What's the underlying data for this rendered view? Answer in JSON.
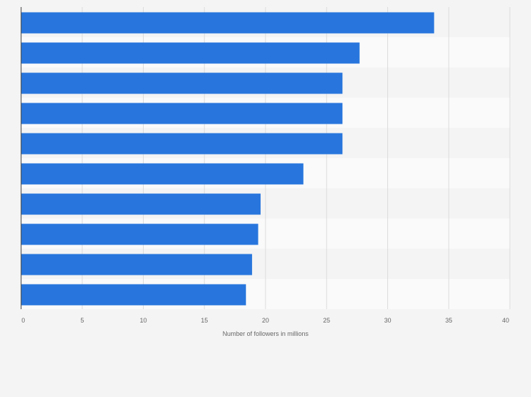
{
  "chart_data": {
    "type": "bar",
    "orientation": "horizontal",
    "categories": [
      "",
      "",
      "",
      "",
      "",
      "",
      "",
      "",
      "",
      ""
    ],
    "values": [
      33.8,
      27.7,
      26.3,
      26.3,
      26.3,
      23.1,
      19.6,
      19.4,
      18.9,
      18.4
    ],
    "xlabel": "Number of followers in millions",
    "ylabel": "",
    "xlim": [
      0,
      40
    ],
    "xticks": [
      "0",
      "5",
      "10",
      "15",
      "20",
      "25",
      "30",
      "35",
      "40"
    ],
    "grid": "vertical",
    "bar_color": "#2876dd",
    "stripe_colors": [
      "#f4f4f4",
      "#fafafa"
    ]
  }
}
